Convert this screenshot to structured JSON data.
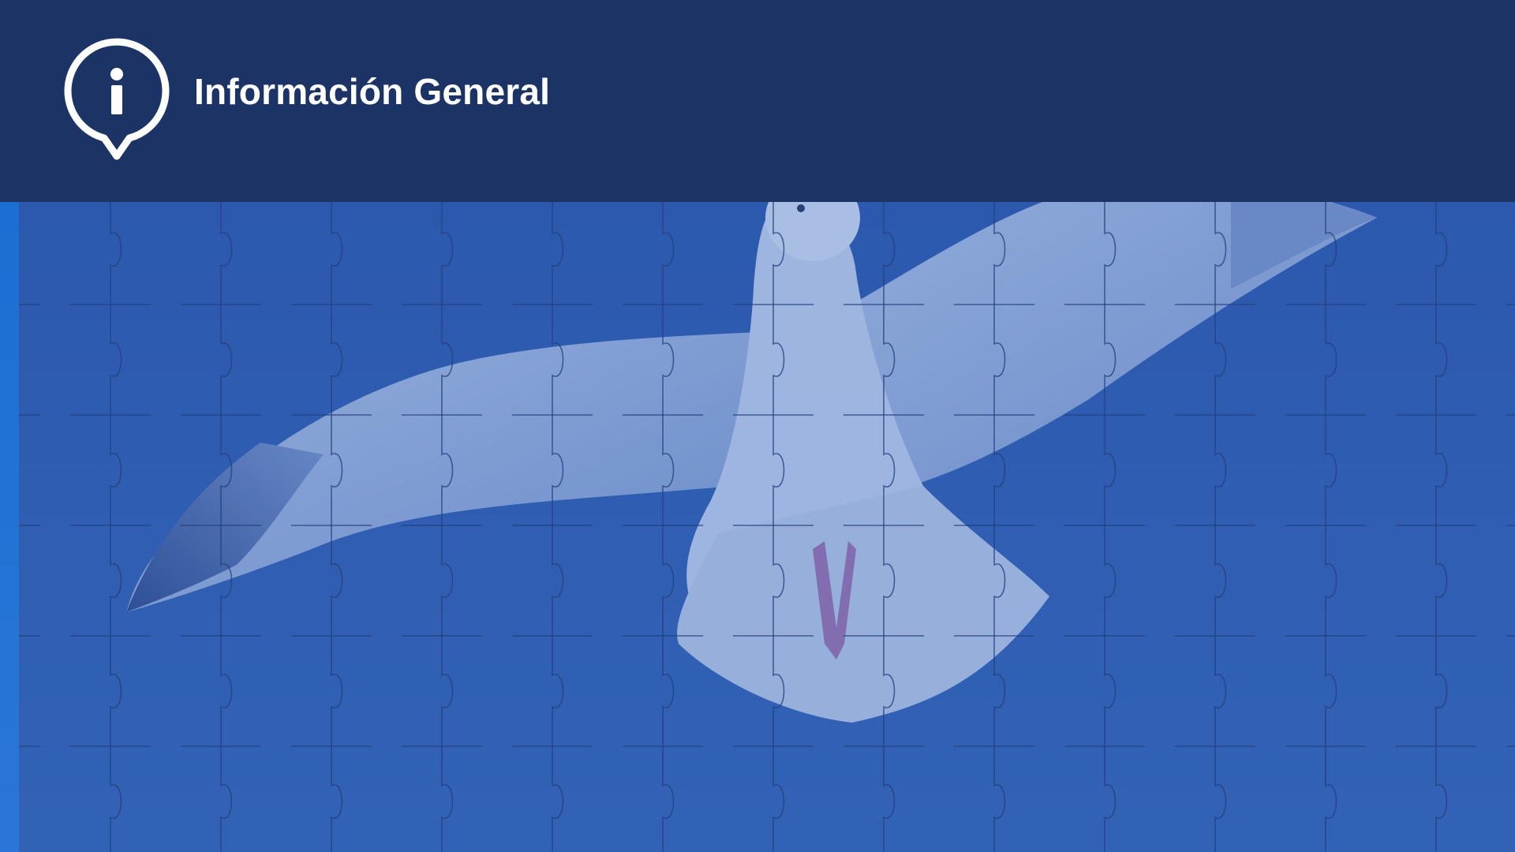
{
  "header": {
    "title": "Información General",
    "icon": "info-pin-icon"
  },
  "background": {
    "image": "flying-seagull-photo",
    "overlay": "jigsaw-puzzle-pattern"
  },
  "colors": {
    "header_bg": "#1c3366",
    "header_text": "#ffffff",
    "hero_bg": "#2f5db1",
    "hero_accent": "#1b6fd2",
    "puzzle_line": "#233f7c",
    "bird_light": "#8ea9d8"
  }
}
